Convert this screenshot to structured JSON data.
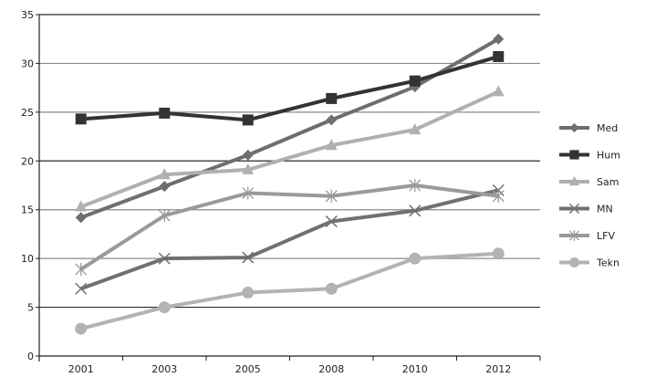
{
  "chart_data": {
    "type": "line",
    "title": "",
    "xlabel": "",
    "ylabel": "",
    "ylim": [
      0,
      35
    ],
    "yticks": [
      0,
      5,
      10,
      15,
      20,
      25,
      30,
      35
    ],
    "grid": true,
    "legend_position": "right",
    "categories": [
      "2001",
      "2003",
      "2005",
      "2008",
      "2010",
      "2012"
    ],
    "series": [
      {
        "name": "Med",
        "marker": "diamond",
        "color": "#6e6e6e",
        "values": [
          14.2,
          17.4,
          20.6,
          24.2,
          27.6,
          32.5
        ]
      },
      {
        "name": "Hum",
        "marker": "square",
        "color": "#333333",
        "values": [
          24.3,
          24.9,
          24.2,
          26.4,
          28.2,
          30.7
        ]
      },
      {
        "name": "Sam",
        "marker": "triangle",
        "color": "#b0b0b0",
        "values": [
          15.3,
          18.6,
          19.1,
          21.6,
          23.2,
          27.1
        ]
      },
      {
        "name": "MN",
        "marker": "x",
        "color": "#707070",
        "values": [
          6.9,
          10.0,
          10.1,
          13.8,
          14.9,
          17.0
        ]
      },
      {
        "name": "LFV",
        "marker": "star",
        "color": "#9a9a9a",
        "values": [
          8.9,
          14.4,
          16.7,
          16.4,
          17.5,
          16.4
        ]
      },
      {
        "name": "Tekn",
        "marker": "circle",
        "color": "#b3b3b3",
        "values": [
          2.8,
          5.0,
          6.5,
          6.9,
          10.0,
          10.5
        ]
      }
    ]
  }
}
